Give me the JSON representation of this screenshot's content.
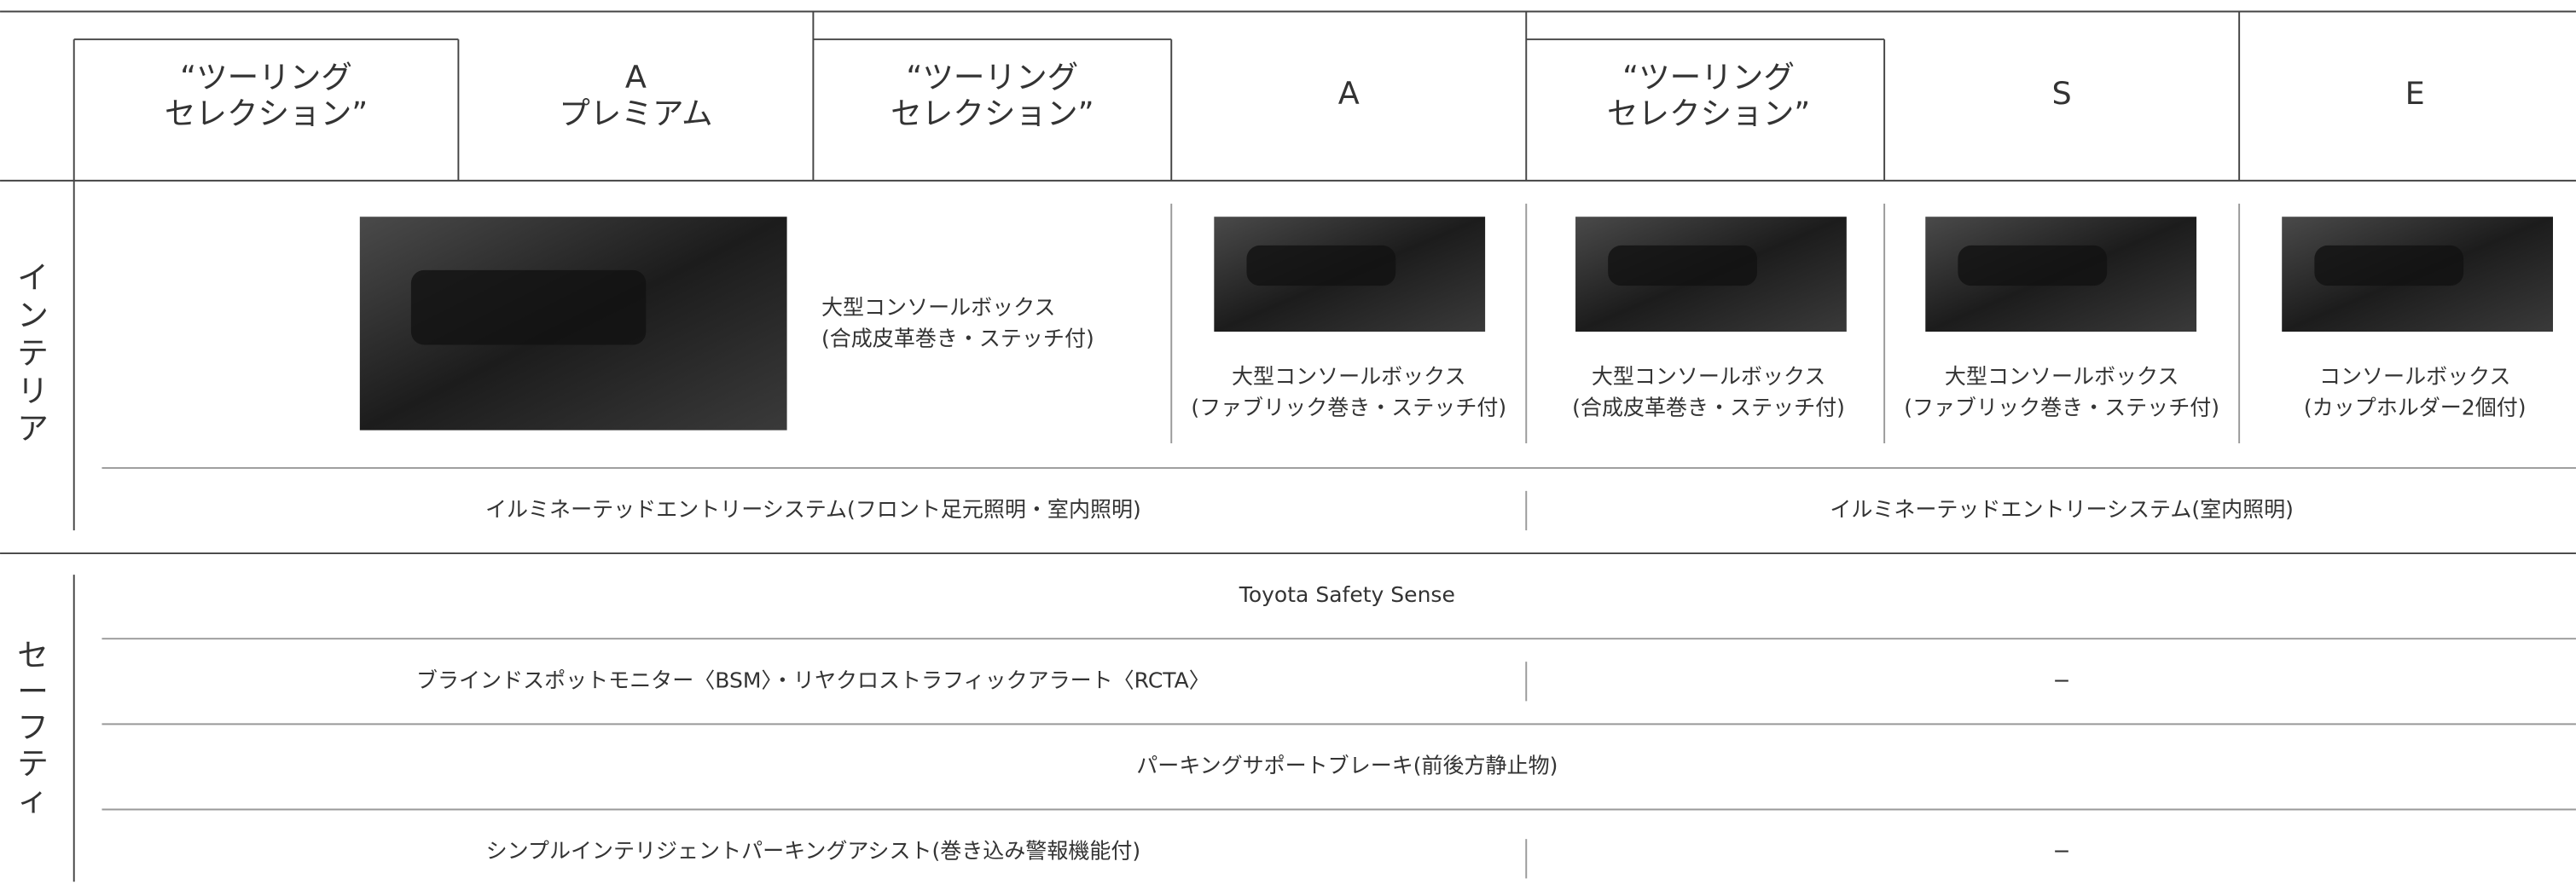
{
  "header": {
    "columns": [
      [
        "“ツーリング",
        "セレクション”"
      ],
      [
        "A",
        "プレミアム"
      ],
      [
        "“ツーリング",
        "セレクション”"
      ],
      [
        "A"
      ],
      [
        "“ツーリング",
        "セレクション”"
      ],
      [
        "S"
      ],
      [
        "E"
      ]
    ]
  },
  "sections": [
    {
      "label": [
        "イ",
        "ン",
        "テ",
        "リ",
        "ア"
      ],
      "items": [
        [
          "大型コンソールボックス",
          "(合成皮革巻き・ステッチ付)"
        ],
        [
          "大型コンソールボックス",
          "(ファブリック巻き・ステッチ付)"
        ],
        [
          "大型コンソールボックス",
          "(合成皮革巻き・ステッチ付)"
        ],
        [
          "大型コンソールボックス",
          "(ファブリック巻き・ステッチ付)"
        ],
        [
          "コンソールボックス",
          "(カップホルダー2個付)"
        ]
      ],
      "rows": [
        [
          "イルミネーテッドエントリーシステム(フロント足元照明・室内照明)",
          "イルミネーテッドエントリーシステム(室内照明)"
        ]
      ]
    },
    {
      "label": [
        "セ",
        "ー",
        "フ",
        "テ",
        "ィ"
      ],
      "rows": [
        [
          "Toyota Safety Sense"
        ],
        [
          "ブラインドスポットモニター〈BSM〉・リヤクロストラフィックアラート〈RCTA〉",
          "−"
        ],
        [
          "パーキングサポートブレーキ(前後方静止物)"
        ],
        [
          "シンプルインテリジェントパーキングアシスト(巻き込み警報機能付)",
          "−"
        ]
      ]
    }
  ]
}
